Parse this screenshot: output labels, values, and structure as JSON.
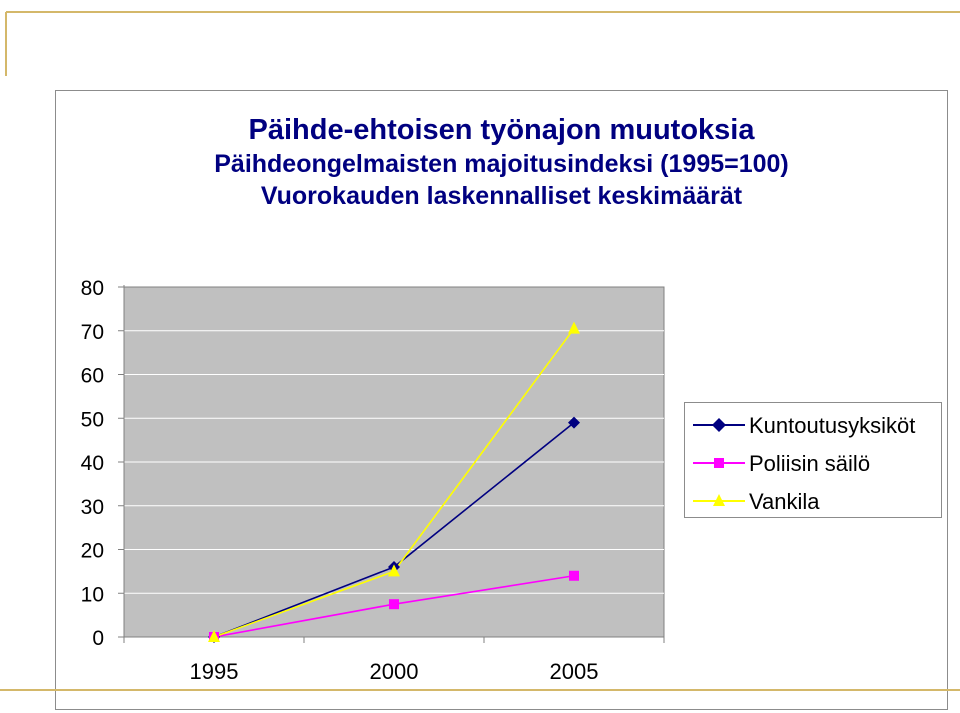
{
  "title": {
    "line1": "Päihde-ehtoisen työnajon muutoksia",
    "line2": "Päihdeongelmaisten majoitusindeksi (1995=100)",
    "line3": "Vuorokauden laskennalliset keskimäärät"
  },
  "colors": {
    "title": "#000080",
    "plot_bg": "#c0c0c0",
    "accent": "#d4b86a"
  },
  "chart_data": {
    "type": "line",
    "categories": [
      "1995",
      "2000",
      "2005"
    ],
    "ylim": [
      0,
      80
    ],
    "yticks": [
      "0",
      "10",
      "20",
      "30",
      "40",
      "50",
      "60",
      "70",
      "80"
    ],
    "grid": true,
    "legend_position": "right",
    "series": [
      {
        "name": "Kuntoutusyksiköt",
        "values": [
          0,
          16,
          49
        ],
        "color": "#000080",
        "marker": "diamond"
      },
      {
        "name": "Poliisin säilö",
        "values": [
          0,
          7.5,
          14
        ],
        "color": "#ff00ff",
        "marker": "square"
      },
      {
        "name": "Vankila",
        "values": [
          0,
          15,
          70.5
        ],
        "color": "#ffff00",
        "marker": "triangle"
      }
    ]
  }
}
